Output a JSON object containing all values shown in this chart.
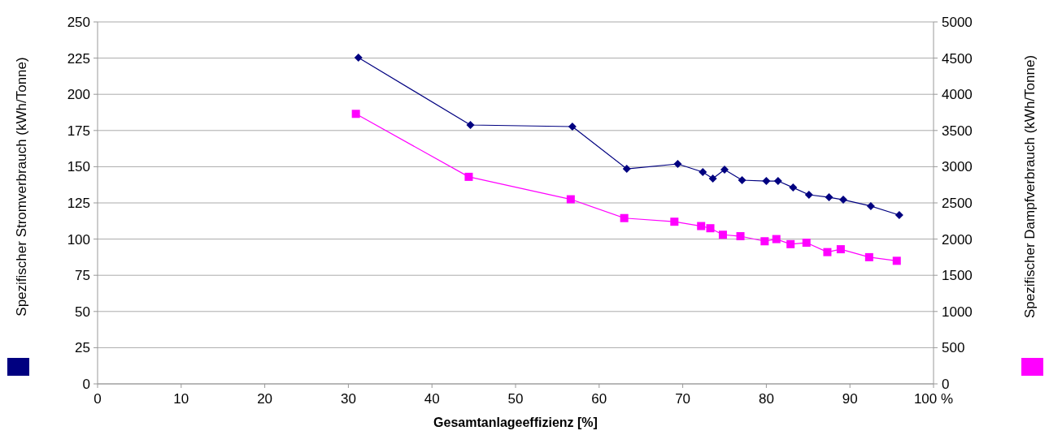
{
  "chart_data": {
    "type": "line",
    "xlabel": "Gesamtanlageeffizienz [%]",
    "ylabel": "Spezifischer Stromverbrauch (kWh/Tonne)",
    "y2label": "Spezifischer Dampfverbrauch (kWh/Tonne)",
    "xlim": [
      0,
      100
    ],
    "xticks": [
      0,
      10,
      20,
      30,
      40,
      50,
      60,
      70,
      80,
      90,
      {
        "value": 100,
        "label": "100 %"
      }
    ],
    "ylim": [
      0,
      250
    ],
    "yticks": [
      0,
      25,
      50,
      75,
      100,
      125,
      150,
      175,
      200,
      225,
      250
    ],
    "y2lim": [
      0,
      5000
    ],
    "y2ticks": [
      0,
      500,
      1000,
      1500,
      2000,
      2500,
      3000,
      3500,
      4000,
      4500,
      5000
    ],
    "grid": "y",
    "series": [
      {
        "color": "#000080",
        "marker": "diamond",
        "x": [
          31.2,
          44.6,
          56.8,
          63.3,
          69.4,
          72.4,
          73.6,
          75.0,
          77.1,
          80.0,
          81.4,
          83.2,
          85.1,
          87.5,
          89.2,
          92.5,
          95.9
        ],
        "values": [
          225.3,
          178.8,
          177.7,
          148.5,
          151.9,
          146.3,
          141.8,
          148,
          140.7,
          140.1,
          140.1,
          135.6,
          130.6,
          128.9,
          127.2,
          122.8,
          116.6
        ]
      },
      {
        "color": "#ff00ff",
        "marker": "square",
        "axis": "y2",
        "x": [
          30.9,
          44.4,
          56.6,
          63.0,
          69.0,
          72.2,
          73.3,
          74.8,
          76.9,
          79.8,
          81.2,
          82.9,
          84.8,
          87.3,
          88.9,
          92.3,
          95.6
        ],
        "values": [
          3730,
          2860,
          2550,
          2290,
          2240,
          2180,
          2150,
          2060,
          2040,
          1970,
          2000,
          1930,
          1950,
          1820,
          1860,
          1750,
          1700
        ]
      }
    ]
  }
}
